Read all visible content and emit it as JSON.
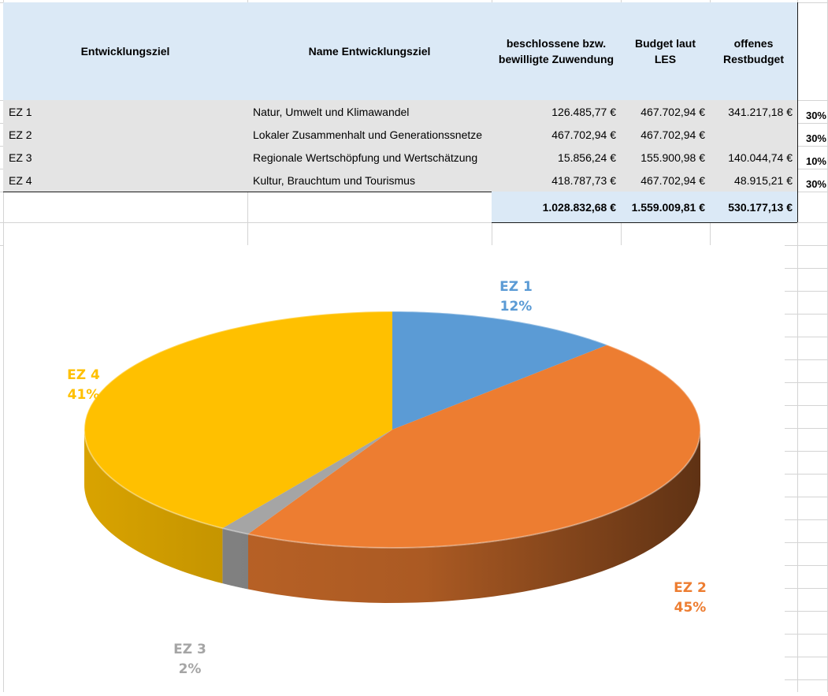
{
  "table": {
    "headers": {
      "col1": "Entwicklungsziel",
      "col2": "Name Entwicklungsziel",
      "col3": "beschlossene bzw. bewilligte Zuwendung",
      "col4": "Budget laut LES",
      "col5": "offenes Restbudget"
    },
    "rows": [
      {
        "id": "EZ 1",
        "name": "Natur, Umwelt und Klimawandel",
        "zuwendung": "126.485,77 €",
        "budget": "467.702,94 €",
        "rest": "341.217,18 €",
        "pct": "30%"
      },
      {
        "id": "EZ 2",
        "name": "Lokaler Zusammenhalt und Generationssnetze",
        "zuwendung": "467.702,94 €",
        "budget": "467.702,94 €",
        "rest": "",
        "pct": "30%"
      },
      {
        "id": "EZ 3",
        "name": "Regionale Wertschöpfung und Wertschätzung",
        "zuwendung": "15.856,24 €",
        "budget": "155.900,98 €",
        "rest": "140.044,74 €",
        "pct": "10%"
      },
      {
        "id": "EZ 4",
        "name": "Kultur, Brauchtum und Tourismus",
        "zuwendung": "418.787,73 €",
        "budget": "467.702,94 €",
        "rest": "48.915,21 €",
        "pct": "30%"
      }
    ],
    "totals": {
      "zuwendung": "1.028.832,68 €",
      "budget": "1.559.009,81 €",
      "rest": "530.177,13 €"
    }
  },
  "chart_data": {
    "type": "pie",
    "categories": [
      "EZ 1",
      "EZ 2",
      "EZ 3",
      "EZ 4"
    ],
    "values": [
      126485.77,
      467702.94,
      15856.24,
      418787.73
    ],
    "percent_labels": [
      "12%",
      "45%",
      "2%",
      "41%"
    ],
    "colors": [
      "#5b9bd5",
      "#ed7d31",
      "#a5a5a5",
      "#ffc000"
    ],
    "label_colors": [
      "#5b9bd5",
      "#ed7d31",
      "#a5a5a5",
      "#ffc000"
    ],
    "title": "",
    "style": "3d"
  }
}
